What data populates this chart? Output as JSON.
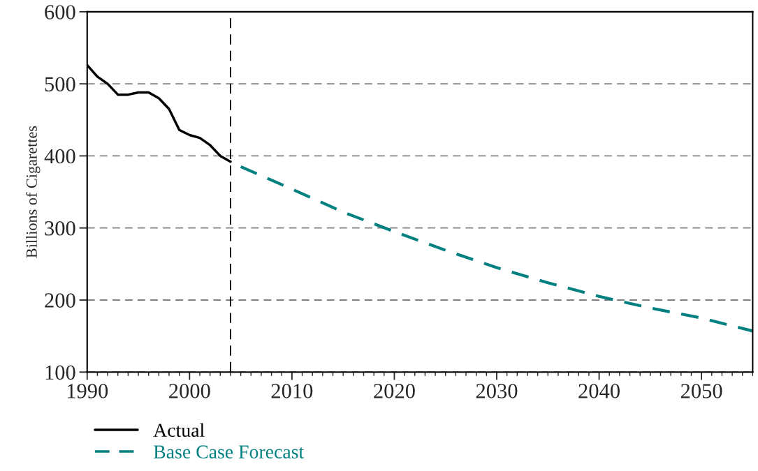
{
  "chart_data": {
    "type": "line",
    "ylabel": "Billions of Cigarettes",
    "xlim": [
      1990,
      2055
    ],
    "xticks": [
      1990,
      2000,
      2010,
      2020,
      2030,
      2040,
      2050
    ],
    "ylim": [
      100,
      600
    ],
    "yticks": [
      100,
      200,
      300,
      400,
      500,
      600
    ],
    "grid": "y",
    "legend": "bottom",
    "ref_lines": [
      {
        "axis": "x",
        "value": 2004,
        "color": "#000000",
        "line_style": "dashed"
      }
    ],
    "series": [
      {
        "name": "Actual",
        "color": "#000000",
        "line_style": "solid",
        "x": [
          1990,
          1991,
          1992,
          1993,
          1994,
          1995,
          1996,
          1997,
          1998,
          1999,
          2000,
          2001,
          2002,
          2003,
          2004
        ],
        "values": [
          526,
          510,
          500,
          485,
          485,
          488,
          488,
          480,
          465,
          436,
          429,
          425,
          415,
          400,
          392
        ]
      },
      {
        "name": "Base Case Forecast",
        "color": "#008080",
        "line_style": "dashed",
        "x": [
          2005,
          2010,
          2015,
          2020,
          2025,
          2030,
          2035,
          2040,
          2045,
          2050,
          2055
        ],
        "values": [
          385,
          354,
          322,
          295,
          269,
          245,
          224,
          205,
          189,
          175,
          157
        ]
      }
    ]
  }
}
